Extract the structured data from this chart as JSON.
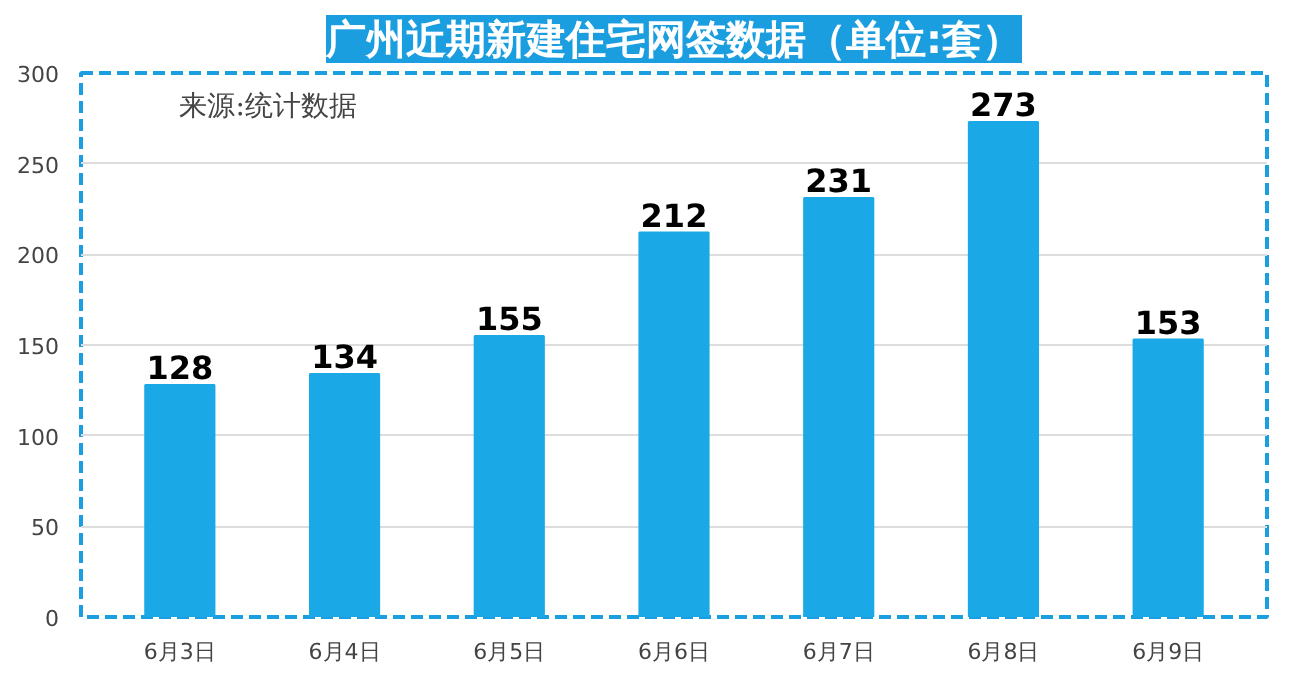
{
  "chart_data": {
    "type": "bar",
    "title": "广州近期新建住宅网签数据（单位:套）",
    "categories": [
      "6月3日",
      "6月4日",
      "6月5日",
      "6月6日",
      "6月7日",
      "6月8日",
      "6月9日"
    ],
    "values": [
      128,
      134,
      155,
      212,
      231,
      273,
      153
    ],
    "color": "#1aa9e6",
    "ylim": [
      0,
      300
    ],
    "yticks": [
      0,
      50,
      100,
      150,
      200,
      250,
      300
    ],
    "grid": "y",
    "data_labels": true,
    "annotations": [
      "来源:统计数据"
    ]
  }
}
